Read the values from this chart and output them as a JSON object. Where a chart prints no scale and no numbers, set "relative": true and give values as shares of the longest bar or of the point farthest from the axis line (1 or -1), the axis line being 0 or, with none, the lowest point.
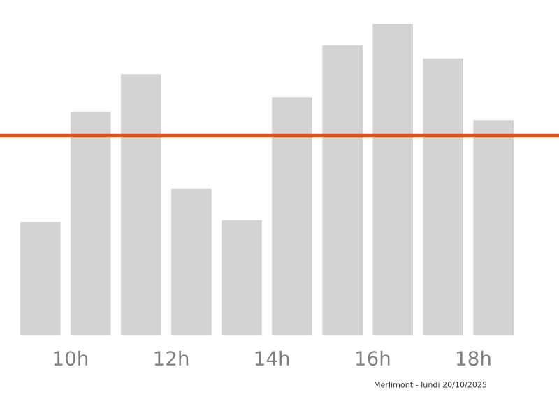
{
  "chart_data": {
    "type": "bar",
    "relative": true,
    "x": [
      9.4,
      10.4,
      11.4,
      12.4,
      13.4,
      14.4,
      15.4,
      16.4,
      17.4,
      18.4
    ],
    "values": [
      0.364,
      0.719,
      0.839,
      0.47,
      0.369,
      0.765,
      0.931,
      1,
      0.889,
      0.691
    ],
    "color": "#d3d3d3",
    "xlim": [
      8.6,
      19.7
    ],
    "xticks": [
      {
        "value": 10,
        "label": "10h"
      },
      {
        "value": 12,
        "label": "12h"
      },
      {
        "value": 14,
        "label": "14h"
      },
      {
        "value": 16,
        "label": "16h"
      },
      {
        "value": 18,
        "label": "18h"
      }
    ],
    "tick_labels": "x",
    "ref_lines": [
      {
        "axis": "y",
        "value": 0.641,
        "color": "#d9541e",
        "line_style": "solid"
      }
    ],
    "annotations": [
      "Merlimont - lundi 20/10/2025"
    ],
    "grid": false,
    "legend": false
  }
}
